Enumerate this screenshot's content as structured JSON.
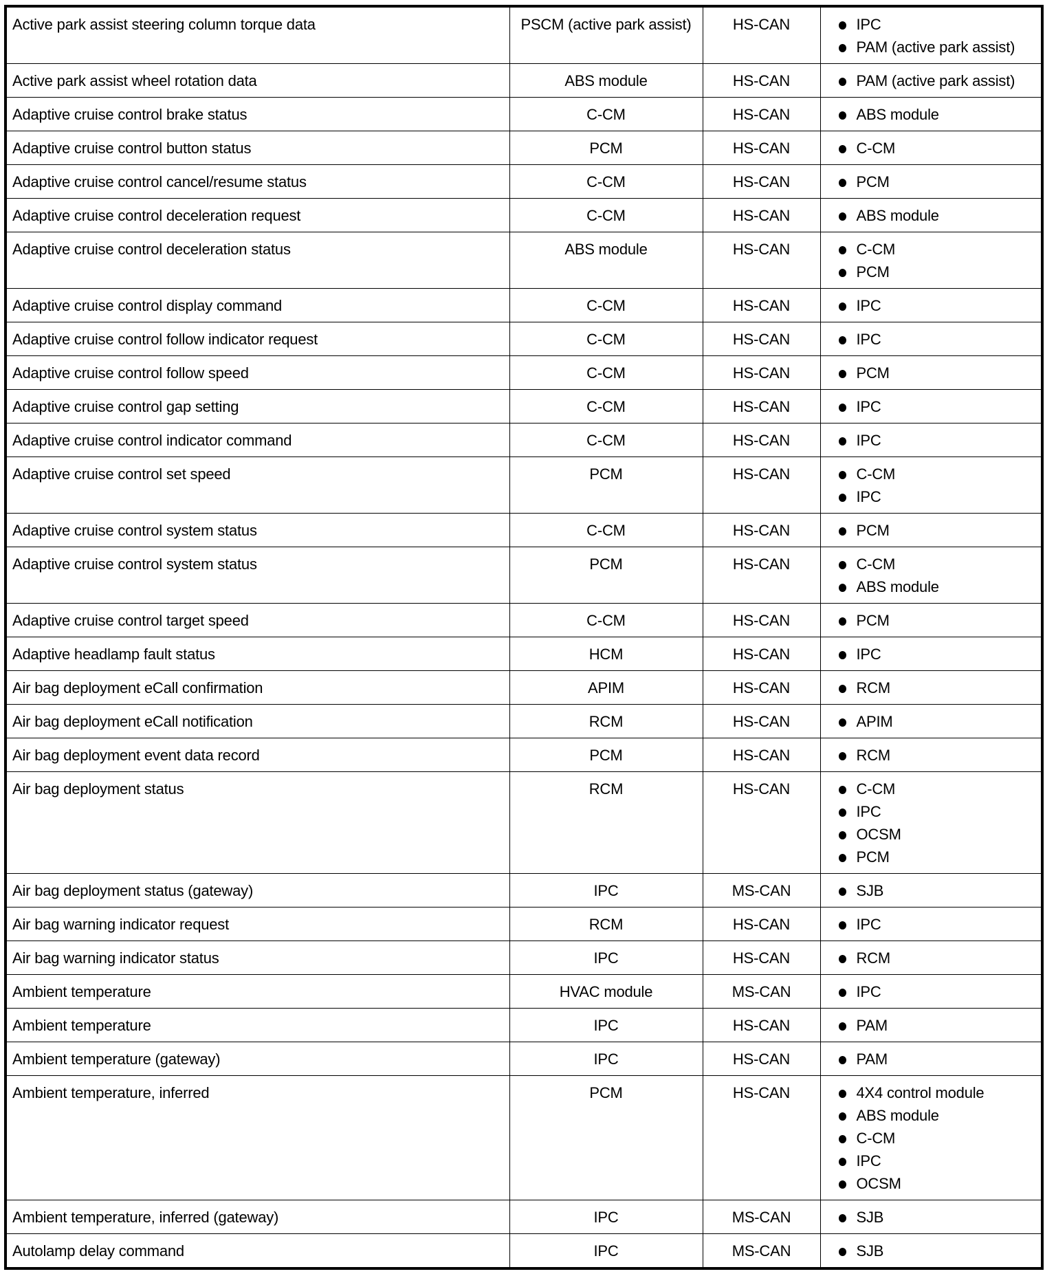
{
  "rows": [
    {
      "message": "Active park assist steering column torque data",
      "originator": "PSCM (active park assist)",
      "network": "HS-CAN",
      "receivers": [
        "IPC",
        "PAM (active park assist)"
      ]
    },
    {
      "message": "Active park assist wheel rotation data",
      "originator": "ABS module",
      "network": "HS-CAN",
      "receivers": [
        "PAM (active park assist)"
      ]
    },
    {
      "message": "Adaptive cruise control brake status",
      "originator": "C-CM",
      "network": "HS-CAN",
      "receivers": [
        "ABS module"
      ]
    },
    {
      "message": "Adaptive cruise control button status",
      "originator": "PCM",
      "network": "HS-CAN",
      "receivers": [
        "C-CM"
      ]
    },
    {
      "message": "Adaptive cruise control cancel/resume status",
      "originator": "C-CM",
      "network": "HS-CAN",
      "receivers": [
        "PCM"
      ]
    },
    {
      "message": "Adaptive cruise control deceleration request",
      "originator": "C-CM",
      "network": "HS-CAN",
      "receivers": [
        "ABS module"
      ]
    },
    {
      "message": "Adaptive cruise control deceleration status",
      "originator": "ABS module",
      "network": "HS-CAN",
      "receivers": [
        "C-CM",
        "PCM"
      ]
    },
    {
      "message": "Adaptive cruise control display command",
      "originator": "C-CM",
      "network": "HS-CAN",
      "receivers": [
        "IPC"
      ]
    },
    {
      "message": "Adaptive cruise control follow indicator request",
      "originator": "C-CM",
      "network": "HS-CAN",
      "receivers": [
        "IPC"
      ]
    },
    {
      "message": "Adaptive cruise control follow speed",
      "originator": "C-CM",
      "network": "HS-CAN",
      "receivers": [
        "PCM"
      ]
    },
    {
      "message": "Adaptive cruise control gap setting",
      "originator": "C-CM",
      "network": "HS-CAN",
      "receivers": [
        "IPC"
      ]
    },
    {
      "message": "Adaptive cruise control indicator command",
      "originator": "C-CM",
      "network": "HS-CAN",
      "receivers": [
        "IPC"
      ]
    },
    {
      "message": "Adaptive cruise control set speed",
      "originator": "PCM",
      "network": "HS-CAN",
      "receivers": [
        "C-CM",
        "IPC"
      ]
    },
    {
      "message": "Adaptive cruise control system status",
      "originator": "C-CM",
      "network": "HS-CAN",
      "receivers": [
        "PCM"
      ]
    },
    {
      "message": "Adaptive cruise control system status",
      "originator": "PCM",
      "network": "HS-CAN",
      "receivers": [
        "C-CM",
        "ABS module"
      ]
    },
    {
      "message": "Adaptive cruise control target speed",
      "originator": "C-CM",
      "network": "HS-CAN",
      "receivers": [
        "PCM"
      ]
    },
    {
      "message": "Adaptive headlamp fault status",
      "originator": "HCM",
      "network": "HS-CAN",
      "receivers": [
        "IPC"
      ]
    },
    {
      "message": "Air bag deployment eCall confirmation",
      "originator": "APIM",
      "network": "HS-CAN",
      "receivers": [
        "RCM"
      ]
    },
    {
      "message": "Air bag deployment eCall notification",
      "originator": "RCM",
      "network": "HS-CAN",
      "receivers": [
        "APIM"
      ]
    },
    {
      "message": "Air bag deployment event data record",
      "originator": "PCM",
      "network": "HS-CAN",
      "receivers": [
        "RCM"
      ]
    },
    {
      "message": "Air bag deployment status",
      "originator": "RCM",
      "network": "HS-CAN",
      "receivers": [
        "C-CM",
        "IPC",
        "OCSM",
        "PCM"
      ]
    },
    {
      "message": "Air bag deployment status (gateway)",
      "originator": "IPC",
      "network": "MS-CAN",
      "receivers": [
        "SJB"
      ]
    },
    {
      "message": "Air bag warning indicator request",
      "originator": "RCM",
      "network": "HS-CAN",
      "receivers": [
        "IPC"
      ]
    },
    {
      "message": "Air bag warning indicator status",
      "originator": "IPC",
      "network": "HS-CAN",
      "receivers": [
        "RCM"
      ]
    },
    {
      "message": "Ambient temperature",
      "originator": "HVAC module",
      "network": "MS-CAN",
      "receivers": [
        "IPC"
      ]
    },
    {
      "message": "Ambient temperature",
      "originator": "IPC",
      "network": "HS-CAN",
      "receivers": [
        "PAM"
      ]
    },
    {
      "message": "Ambient temperature (gateway)",
      "originator": "IPC",
      "network": "HS-CAN",
      "receivers": [
        "PAM"
      ]
    },
    {
      "message": "Ambient temperature, inferred",
      "originator": "PCM",
      "network": "HS-CAN",
      "receivers": [
        "4X4 control module",
        "ABS module",
        "C-CM",
        "IPC",
        "OCSM"
      ]
    },
    {
      "message": "Ambient temperature, inferred (gateway)",
      "originator": "IPC",
      "network": "MS-CAN",
      "receivers": [
        "SJB"
      ]
    },
    {
      "message": "Autolamp delay command",
      "originator": "IPC",
      "network": "MS-CAN",
      "receivers": [
        "SJB"
      ]
    }
  ]
}
